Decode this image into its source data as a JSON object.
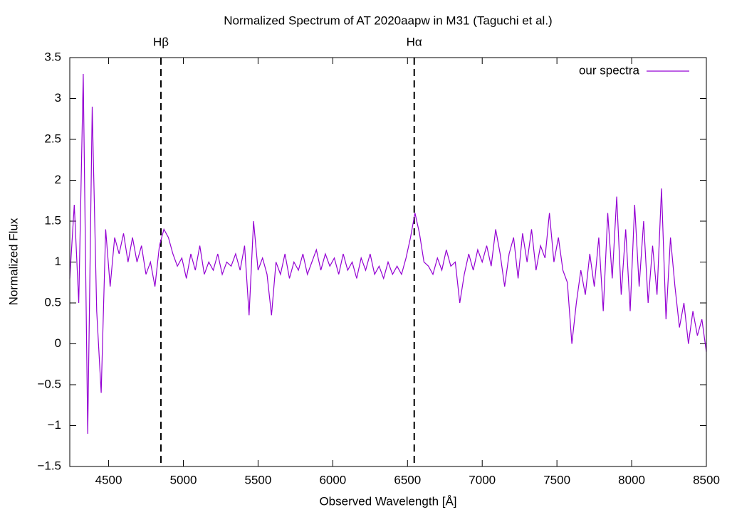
{
  "chart_data": {
    "type": "line",
    "title": "Normalized Spectrum of AT 2020aapw in M31 (Taguchi et al.)",
    "x_label": "Observed Wavelength [Å]",
    "y_label": "Normalized Flux",
    "xlim": [
      4240,
      8500
    ],
    "xticks": [
      4500,
      5000,
      5500,
      6000,
      6500,
      7000,
      7500,
      8000,
      8500
    ],
    "ylim": [
      -1.5,
      3.5
    ],
    "yticks": [
      {
        "value": -1.5,
        "label": "−1.5"
      },
      {
        "value": -1,
        "label": "−1"
      },
      {
        "value": -0.5,
        "label": "−0.5"
      },
      0,
      0.5,
      1,
      1.5,
      2,
      2.5,
      3,
      3.5
    ],
    "legend": "top-right",
    "annotations": [
      {
        "label": "Hβ",
        "x": 4850
      },
      {
        "label": "Hα",
        "x": 6545
      }
    ],
    "x": [
      4240,
      4270,
      4300,
      4330,
      4360,
      4390,
      4420,
      4450,
      4480,
      4510,
      4540,
      4570,
      4600,
      4630,
      4660,
      4690,
      4720,
      4750,
      4780,
      4810,
      4840,
      4870,
      4900,
      4930,
      4960,
      4990,
      5020,
      5050,
      5080,
      5110,
      5140,
      5170,
      5200,
      5230,
      5260,
      5290,
      5320,
      5350,
      5380,
      5410,
      5440,
      5470,
      5500,
      5530,
      5560,
      5590,
      5620,
      5650,
      5680,
      5710,
      5740,
      5770,
      5800,
      5830,
      5860,
      5890,
      5920,
      5950,
      5980,
      6010,
      6040,
      6070,
      6100,
      6130,
      6160,
      6190,
      6220,
      6250,
      6280,
      6310,
      6340,
      6370,
      6400,
      6430,
      6460,
      6490,
      6520,
      6550,
      6580,
      6610,
      6640,
      6670,
      6700,
      6730,
      6760,
      6790,
      6820,
      6850,
      6880,
      6910,
      6940,
      6970,
      7000,
      7030,
      7060,
      7090,
      7120,
      7150,
      7180,
      7210,
      7240,
      7270,
      7300,
      7330,
      7360,
      7390,
      7420,
      7450,
      7480,
      7510,
      7540,
      7570,
      7600,
      7630,
      7660,
      7690,
      7720,
      7750,
      7780,
      7810,
      7840,
      7870,
      7900,
      7930,
      7960,
      7990,
      8020,
      8050,
      8080,
      8110,
      8140,
      8170,
      8200,
      8230,
      8260,
      8290,
      8320,
      8350,
      8380,
      8410,
      8440,
      8470,
      8500
    ],
    "series": [
      {
        "name": "our spectra",
        "color": "#9400d3",
        "values": [
          0.8,
          1.7,
          0.5,
          3.3,
          -1.1,
          2.9,
          0.4,
          -0.6,
          1.4,
          0.7,
          1.3,
          1.1,
          1.35,
          1.0,
          1.3,
          1.0,
          1.2,
          0.85,
          1.0,
          0.7,
          1.2,
          1.4,
          1.3,
          1.1,
          0.95,
          1.05,
          0.8,
          1.1,
          0.9,
          1.2,
          0.85,
          1.0,
          0.9,
          1.1,
          0.85,
          1.0,
          0.95,
          1.1,
          0.9,
          1.2,
          0.35,
          1.5,
          0.9,
          1.05,
          0.85,
          0.35,
          1.0,
          0.85,
          1.1,
          0.8,
          1.0,
          0.9,
          1.1,
          0.85,
          1.0,
          1.15,
          0.9,
          1.1,
          0.95,
          1.05,
          0.85,
          1.1,
          0.9,
          1.0,
          0.8,
          1.05,
          0.9,
          1.1,
          0.85,
          0.95,
          0.8,
          1.0,
          0.85,
          0.95,
          0.85,
          1.05,
          1.3,
          1.6,
          1.35,
          1.0,
          0.95,
          0.85,
          1.05,
          0.9,
          1.15,
          0.95,
          1.0,
          0.5,
          0.85,
          1.1,
          0.9,
          1.15,
          1.0,
          1.2,
          0.95,
          1.4,
          1.1,
          0.7,
          1.1,
          1.3,
          0.8,
          1.35,
          1.0,
          1.4,
          0.9,
          1.2,
          1.05,
          1.6,
          1.0,
          1.3,
          0.9,
          0.75,
          0.0,
          0.5,
          0.9,
          0.6,
          1.1,
          0.7,
          1.3,
          0.4,
          1.6,
          0.8,
          1.8,
          0.6,
          1.4,
          0.4,
          1.7,
          0.7,
          1.5,
          0.5,
          1.2,
          0.6,
          1.9,
          0.3,
          1.3,
          0.7,
          0.2,
          0.5,
          0.0,
          0.4,
          0.1,
          0.3,
          -0.1
        ]
      }
    ]
  }
}
